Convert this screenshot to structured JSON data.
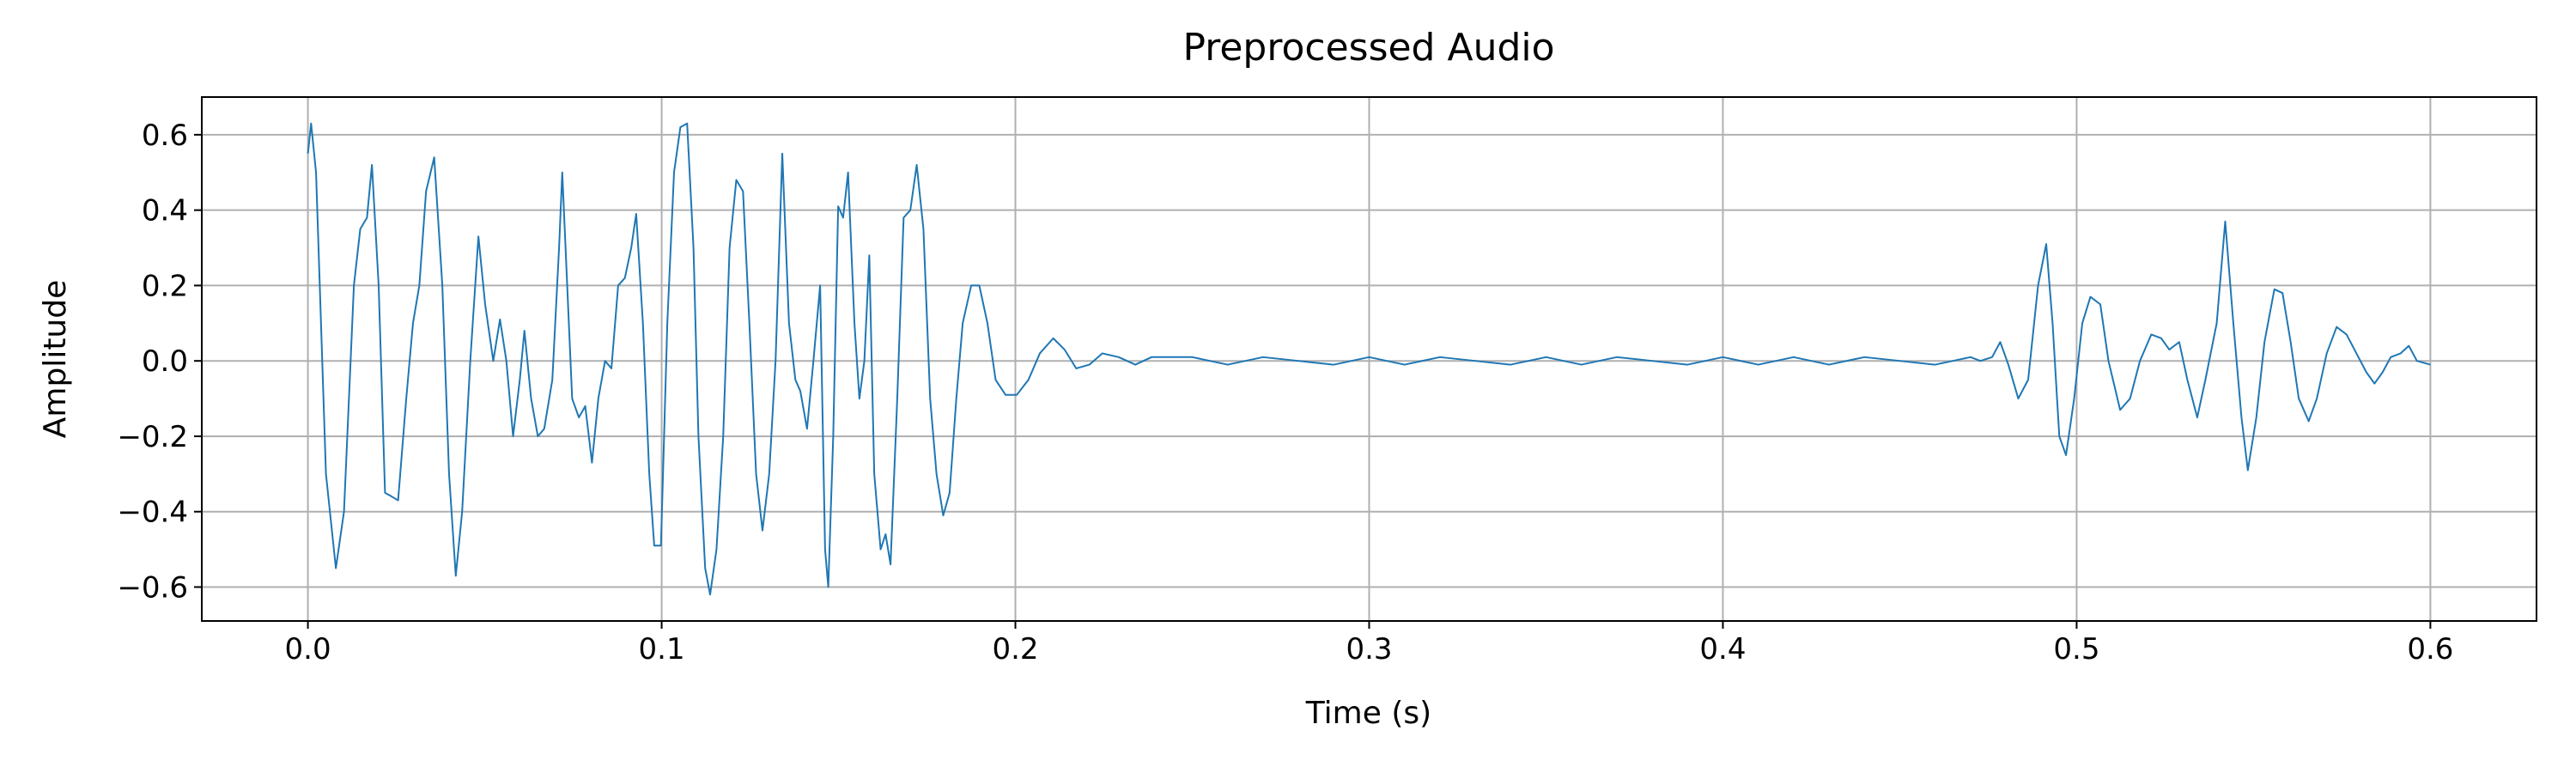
{
  "chart_data": {
    "type": "line",
    "title": "Preprocessed Audio",
    "xlabel": "Time (s)",
    "ylabel": "Amplitude",
    "color": "#1f77b4",
    "grid": true,
    "xlim": [
      -0.03,
      0.63
    ],
    "ylim": [
      -0.69,
      0.7
    ],
    "xticks": [
      {
        "value": 0,
        "label": "0.0"
      },
      0.1,
      0.2,
      0.3,
      0.4,
      0.5,
      0.6
    ],
    "yticks": [
      {
        "value": -0.6,
        "label": "−0.6"
      },
      {
        "value": -0.4,
        "label": "−0.4"
      },
      {
        "value": -0.2,
        "label": "−0.2"
      },
      {
        "value": 0,
        "label": "0.0"
      },
      0.2,
      0.4,
      0.6
    ],
    "x": [
      0,
      0.0009,
      0.0023,
      0.0051,
      0.0079,
      0.0102,
      0.013,
      0.0148,
      0.0167,
      0.0181,
      0.02,
      0.0218,
      0.0237,
      0.0255,
      0.0278,
      0.0297,
      0.0315,
      0.0334,
      0.0357,
      0.038,
      0.0399,
      0.0418,
      0.0436,
      0.0459,
      0.0482,
      0.0501,
      0.0524,
      0.0543,
      0.0561,
      0.058,
      0.0599,
      0.0612,
      0.0631,
      0.065,
      0.0668,
      0.0691,
      0.071,
      0.0719,
      0.0733,
      0.0747,
      0.0766,
      0.0784,
      0.0803,
      0.0821,
      0.084,
      0.0858,
      0.0877,
      0.0896,
      0.0914,
      0.0928,
      0.0947,
      0.0965,
      0.0979,
      0.0998,
      0.1016,
      0.1035,
      0.1053,
      0.1072,
      0.109,
      0.1104,
      0.1123,
      0.1137,
      0.1155,
      0.1174,
      0.1192,
      0.1211,
      0.123,
      0.1248,
      0.1267,
      0.1285,
      0.1304,
      0.1322,
      0.1341,
      0.136,
      0.1378,
      0.1392,
      0.1411,
      0.1429,
      0.1448,
      0.1462,
      0.1471,
      0.1485,
      0.1499,
      0.1513,
      0.1527,
      0.1545,
      0.1559,
      0.1573,
      0.1587,
      0.1601,
      0.1619,
      0.1633,
      0.1647,
      0.1666,
      0.1684,
      0.1703,
      0.1721,
      0.174,
      0.1759,
      0.1777,
      0.1796,
      0.1814,
      0.1833,
      0.1851,
      0.1875,
      0.1898,
      0.1921,
      0.1944,
      0.1972,
      0.2004,
      0.2037,
      0.2069,
      0.2107,
      0.2139,
      0.2172,
      0.2209,
      0.2246,
      0.2292,
      0.2339,
      0.2385,
      0.25,
      0.26,
      0.27,
      0.28,
      0.29,
      0.3,
      0.31,
      0.32,
      0.33,
      0.34,
      0.35,
      0.36,
      0.37,
      0.38,
      0.39,
      0.4,
      0.41,
      0.42,
      0.43,
      0.44,
      0.45,
      0.46,
      0.47,
      0.4728,
      0.4761,
      0.4784,
      0.4807,
      0.4835,
      0.4863,
      0.4891,
      0.4914,
      0.4932,
      0.4951,
      0.497,
      0.4993,
      0.5016,
      0.5039,
      0.5067,
      0.509,
      0.5123,
      0.5151,
      0.5179,
      0.5211,
      0.5239,
      0.5262,
      0.529,
      0.5313,
      0.5341,
      0.5364,
      0.5396,
      0.542,
      0.5443,
      0.5466,
      0.5484,
      0.5508,
      0.5531,
      0.5559,
      0.5582,
      0.5605,
      0.5628,
      0.5656,
      0.5679,
      0.5707,
      0.5735,
      0.5763,
      0.5791,
      0.5819,
      0.5842,
      0.5865,
      0.5888,
      0.5916,
      0.5939,
      0.5962,
      0.6
    ],
    "values": [
      0.55,
      0.63,
      0.5,
      -0.3,
      -0.55,
      -0.4,
      0.2,
      0.35,
      0.38,
      0.52,
      0.2,
      -0.35,
      -0.36,
      -0.37,
      -0.1,
      0.1,
      0.2,
      0.45,
      0.54,
      0.2,
      -0.3,
      -0.57,
      -0.4,
      0,
      0.33,
      0.15,
      0,
      0.11,
      0,
      -0.2,
      -0.05,
      0.08,
      -0.1,
      -0.2,
      -0.18,
      -0.05,
      0.3,
      0.5,
      0.2,
      -0.1,
      -0.15,
      -0.12,
      -0.27,
      -0.1,
      0,
      -0.02,
      0.2,
      0.22,
      0.3,
      0.39,
      0.1,
      -0.3,
      -0.49,
      -0.49,
      0.1,
      0.5,
      0.62,
      0.63,
      0.3,
      -0.2,
      -0.55,
      -0.62,
      -0.5,
      -0.2,
      0.3,
      0.48,
      0.45,
      0.1,
      -0.3,
      -0.45,
      -0.3,
      0,
      0.55,
      0.1,
      -0.05,
      -0.08,
      -0.18,
      0,
      0.2,
      -0.5,
      -0.6,
      -0.2,
      0.41,
      0.38,
      0.5,
      0.1,
      -0.1,
      0,
      0.28,
      -0.3,
      -0.5,
      -0.46,
      -0.54,
      -0.1,
      0.38,
      0.4,
      0.52,
      0.35,
      -0.1,
      -0.3,
      -0.41,
      -0.35,
      -0.1,
      0.1,
      0.2,
      0.2,
      0.1,
      -0.05,
      -0.09,
      -0.09,
      -0.05,
      0.02,
      0.06,
      0.03,
      -0.02,
      -0.01,
      0.02,
      0.01,
      -0.01,
      0.01,
      0.01,
      -0.01,
      0.01,
      0,
      -0.01,
      0.01,
      -0.01,
      0.01,
      0,
      -0.01,
      0.01,
      -0.01,
      0.01,
      0,
      -0.01,
      0.01,
      -0.01,
      0.01,
      -0.01,
      0.01,
      0,
      -0.01,
      0.01,
      0,
      0.01,
      0.05,
      -0.01,
      -0.1,
      -0.05,
      0.2,
      0.31,
      0.1,
      -0.2,
      -0.25,
      -0.1,
      0.1,
      0.17,
      0.15,
      0,
      -0.13,
      -0.1,
      0,
      0.07,
      0.06,
      0.03,
      0.05,
      -0.05,
      -0.15,
      -0.05,
      0.1,
      0.37,
      0.1,
      -0.15,
      -0.29,
      -0.15,
      0.05,
      0.19,
      0.18,
      0.05,
      -0.1,
      -0.16,
      -0.1,
      0.02,
      0.09,
      0.07,
      0.02,
      -0.03,
      -0.06,
      -0.03,
      0.01,
      0.02,
      0.04,
      0,
      -0.01
    ]
  }
}
